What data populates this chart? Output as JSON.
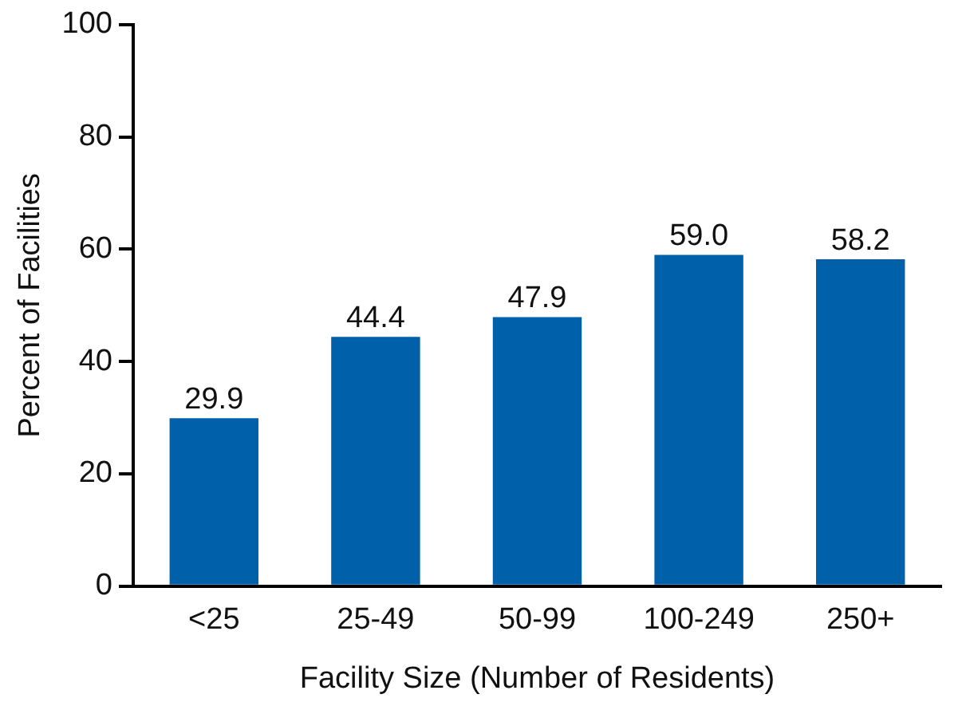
{
  "chart_data": {
    "type": "bar",
    "xlabel": "Facility Size (Number of Residents)",
    "ylabel": "Percent of Facilities",
    "categories": [
      "<25",
      "25-49",
      "50-99",
      "100-249",
      "250+"
    ],
    "values": [
      29.9,
      44.4,
      47.9,
      59.0,
      58.2
    ],
    "value_labels": [
      "29.9",
      "44.4",
      "47.9",
      "59.0",
      "58.2"
    ],
    "color": "#0060a9",
    "ylim": [
      0,
      100
    ],
    "yticks": [
      0,
      20,
      40,
      60,
      80,
      100
    ],
    "grid": false,
    "legend": false
  }
}
